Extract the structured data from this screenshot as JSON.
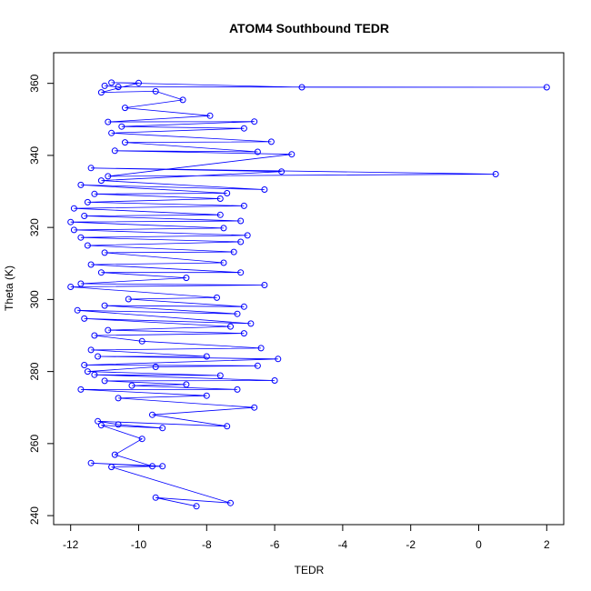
{
  "chart_data": {
    "type": "scatter",
    "title": "ATOM4 Southbound TEDR",
    "xlabel": "TEDR",
    "ylabel": "Theta (K)",
    "xlim": [
      -12.5,
      2.5
    ],
    "ylim": [
      237.5,
      368.5
    ],
    "xticks": [
      -12,
      -10,
      -8,
      -6,
      -4,
      -2,
      0,
      2
    ],
    "yticks": [
      240,
      260,
      280,
      300,
      320,
      340,
      360
    ],
    "grid": false,
    "legend": "none",
    "connected": true,
    "color": "#0000ff",
    "series": [
      {
        "points": [
          [
            -8.3,
            242.6
          ],
          [
            -9.5,
            245.0
          ],
          [
            -7.3,
            243.5
          ],
          [
            -10.8,
            253.5
          ],
          [
            -9.3,
            253.7
          ],
          [
            -11.4,
            254.6
          ],
          [
            -9.6,
            253.7
          ],
          [
            -10.7,
            256.9
          ],
          [
            -9.9,
            261.3
          ],
          [
            -11.1,
            265.1
          ],
          [
            -9.3,
            264.3
          ],
          [
            -10.6,
            265.3
          ],
          [
            -11.2,
            266.2
          ],
          [
            -7.4,
            264.8
          ],
          [
            -9.6,
            268.0
          ],
          [
            -6.6,
            270.0
          ],
          [
            -10.6,
            272.6
          ],
          [
            -8.0,
            273.3
          ],
          [
            -11.7,
            275.0
          ],
          [
            -7.1,
            275.0
          ],
          [
            -10.2,
            276.1
          ],
          [
            -8.6,
            276.4
          ],
          [
            -11.0,
            277.4
          ],
          [
            -6.0,
            277.5
          ],
          [
            -11.3,
            279.1
          ],
          [
            -7.6,
            278.9
          ],
          [
            -11.5,
            280.0
          ],
          [
            -9.5,
            281.3
          ],
          [
            -6.5,
            281.6
          ],
          [
            -11.6,
            281.8
          ],
          [
            -5.9,
            283.5
          ],
          [
            -11.2,
            284.2
          ],
          [
            -8.0,
            284.2
          ],
          [
            -11.4,
            286.0
          ],
          [
            -6.4,
            286.5
          ],
          [
            -9.9,
            288.4
          ],
          [
            -11.3,
            290.0
          ],
          [
            -6.9,
            290.6
          ],
          [
            -10.9,
            291.5
          ],
          [
            -7.3,
            292.5
          ],
          [
            -11.6,
            294.7
          ],
          [
            -6.7,
            293.3
          ],
          [
            -11.8,
            297.0
          ],
          [
            -7.1,
            296.0
          ],
          [
            -11.0,
            298.3
          ],
          [
            -6.9,
            298.0
          ],
          [
            -10.3,
            300.1
          ],
          [
            -7.7,
            300.5
          ],
          [
            -12.0,
            303.5
          ],
          [
            -6.3,
            304.0
          ],
          [
            -11.7,
            304.4
          ],
          [
            -8.6,
            306.0
          ],
          [
            -11.1,
            307.5
          ],
          [
            -7.0,
            307.5
          ],
          [
            -11.4,
            309.7
          ],
          [
            -7.5,
            310.2
          ],
          [
            -11.0,
            313.0
          ],
          [
            -7.2,
            313.2
          ],
          [
            -11.5,
            315.0
          ],
          [
            -7.0,
            316.0
          ],
          [
            -11.7,
            317.2
          ],
          [
            -6.8,
            317.8
          ],
          [
            -11.9,
            319.3
          ],
          [
            -7.5,
            319.8
          ],
          [
            -12.0,
            321.5
          ],
          [
            -7.0,
            321.8
          ],
          [
            -11.6,
            323.2
          ],
          [
            -7.6,
            323.5
          ],
          [
            -11.9,
            325.3
          ],
          [
            -6.9,
            326.0
          ],
          [
            -11.5,
            327.0
          ],
          [
            -7.6,
            328.0
          ],
          [
            -11.3,
            329.3
          ],
          [
            -7.4,
            329.5
          ],
          [
            -11.7,
            331.8
          ],
          [
            -6.3,
            330.5
          ],
          [
            -11.1,
            333.0
          ],
          [
            -5.8,
            335.5
          ],
          [
            -11.4,
            336.5
          ],
          [
            0.5,
            334.8
          ],
          [
            -10.9,
            334.2
          ],
          [
            -5.5,
            340.3
          ],
          [
            -10.7,
            341.3
          ],
          [
            -6.5,
            341.0
          ],
          [
            -10.4,
            343.6
          ],
          [
            -6.1,
            343.8
          ],
          [
            -10.8,
            346.2
          ],
          [
            -6.9,
            347.5
          ],
          [
            -10.5,
            348.0
          ],
          [
            -6.6,
            349.4
          ],
          [
            -10.9,
            349.3
          ],
          [
            -7.9,
            351.0
          ],
          [
            -10.4,
            353.2
          ],
          [
            -8.7,
            355.4
          ],
          [
            -9.5,
            357.8
          ],
          [
            -11.1,
            357.5
          ],
          [
            -10.0,
            360.1
          ],
          [
            -10.8,
            360.2
          ],
          [
            -5.2,
            358.9
          ],
          [
            2.0,
            358.9
          ],
          [
            -10.6,
            359.0
          ],
          [
            -11.0,
            359.3
          ]
        ]
      }
    ]
  }
}
